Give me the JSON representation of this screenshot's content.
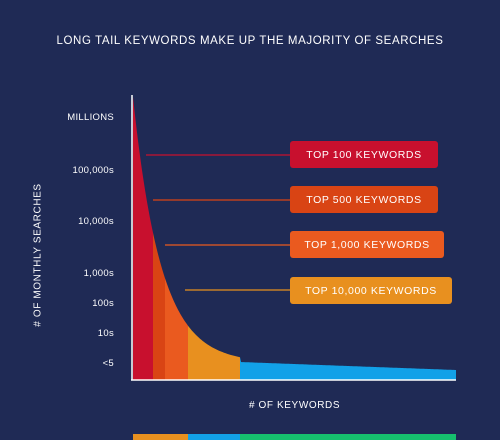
{
  "chart_data": {
    "type": "area",
    "title": "LONG TAIL KEYWORDS MAKE UP THE MAJORITY OF SEARCHES",
    "xlabel": "# OF KEYWORDS",
    "ylabel": "# OF MONTHLY SEARCHES",
    "y_tick_labels": [
      "MILLIONS",
      "100,000s",
      "10,000s",
      "1,000s",
      "100s",
      "10s",
      "<5"
    ],
    "segments": [
      {
        "name": "TOP 100 KEYWORDS",
        "color": "#c8102e"
      },
      {
        "name": "TOP 500 KEYWORDS",
        "color": "#d94414"
      },
      {
        "name": "TOP 1,000 KEYWORDS",
        "color": "#ea5a1f"
      },
      {
        "name": "TOP 10,000 KEYWORDS",
        "color": "#e8901f"
      },
      {
        "name": "",
        "color": "#12a1e8"
      },
      {
        "name": "",
        "color": "#16c06e"
      }
    ],
    "legend_placement": "right, callouts",
    "grid": false
  }
}
